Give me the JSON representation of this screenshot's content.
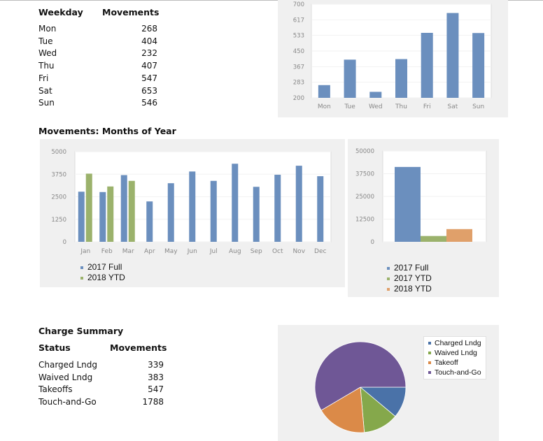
{
  "weekday_table": {
    "col1": "Weekday",
    "col2": "Movements",
    "rows": [
      {
        "label": "Mon",
        "value": "268"
      },
      {
        "label": "Tue",
        "value": "404"
      },
      {
        "label": "Wed",
        "value": "232"
      },
      {
        "label": "Thu",
        "value": "407"
      },
      {
        "label": "Fri",
        "value": "547"
      },
      {
        "label": "Sat",
        "value": "653"
      },
      {
        "label": "Sun",
        "value": "546"
      }
    ]
  },
  "months_title": "Movements: Months of Year",
  "charge_summary": {
    "title": "Charge Summary",
    "col1": "Status",
    "col2": "Movements",
    "rows": [
      {
        "label": "Charged Lndg",
        "value": "339"
      },
      {
        "label": "Waived Lndg",
        "value": "383"
      },
      {
        "label": "Takeoffs",
        "value": "547"
      },
      {
        "label": "Touch-and-Go",
        "value": "1788"
      }
    ]
  },
  "colors": {
    "blue": "#6b8fbe",
    "green": "#9bb26c",
    "orange": "#e0a06a",
    "pie_blue": "#4a72a8",
    "pie_green": "#85a84b",
    "pie_orange": "#db8a48",
    "pie_purple": "#6f5796"
  },
  "chart_data": [
    {
      "type": "bar",
      "categories": [
        "Mon",
        "Tue",
        "Wed",
        "Thu",
        "Fri",
        "Sat",
        "Sun"
      ],
      "values": [
        268,
        404,
        232,
        407,
        547,
        653,
        546
      ],
      "yticks": [
        "200",
        "283",
        "367",
        "450",
        "533",
        "617",
        "700"
      ],
      "ylim": [
        200,
        700
      ]
    },
    {
      "type": "bar",
      "categories": [
        "Jan",
        "Feb",
        "Mar",
        "Apr",
        "May",
        "Jun",
        "Jul",
        "Aug",
        "Sep",
        "Oct",
        "Nov",
        "Dec"
      ],
      "series": [
        {
          "name": "2017 Full",
          "values": [
            2780,
            2760,
            3700,
            2240,
            3250,
            3900,
            3380,
            4330,
            3050,
            3720,
            4220,
            3640
          ]
        },
        {
          "name": "2018 YTD",
          "values": [
            3780,
            3070,
            3380,
            null,
            null,
            null,
            null,
            null,
            null,
            null,
            null,
            null
          ]
        }
      ],
      "yticks": [
        "0",
        "1250",
        "2500",
        "3750",
        "5000"
      ],
      "ylim": [
        0,
        5000
      ]
    },
    {
      "type": "bar",
      "series": [
        {
          "name": "2017 Full",
          "values": [
            41200
          ]
        },
        {
          "name": "2017 YTD",
          "values": [
            3200
          ]
        },
        {
          "name": "2018 YTD",
          "values": [
            7000
          ]
        }
      ],
      "yticks": [
        "0",
        "12500",
        "25000",
        "37500",
        "50000"
      ],
      "ylim": [
        0,
        50000
      ]
    },
    {
      "type": "pie",
      "labels": [
        "Charged Lndg",
        "Waived Lndg",
        "Takeoff",
        "Touch-and-Go"
      ],
      "values": [
        339,
        383,
        547,
        1788
      ]
    }
  ]
}
